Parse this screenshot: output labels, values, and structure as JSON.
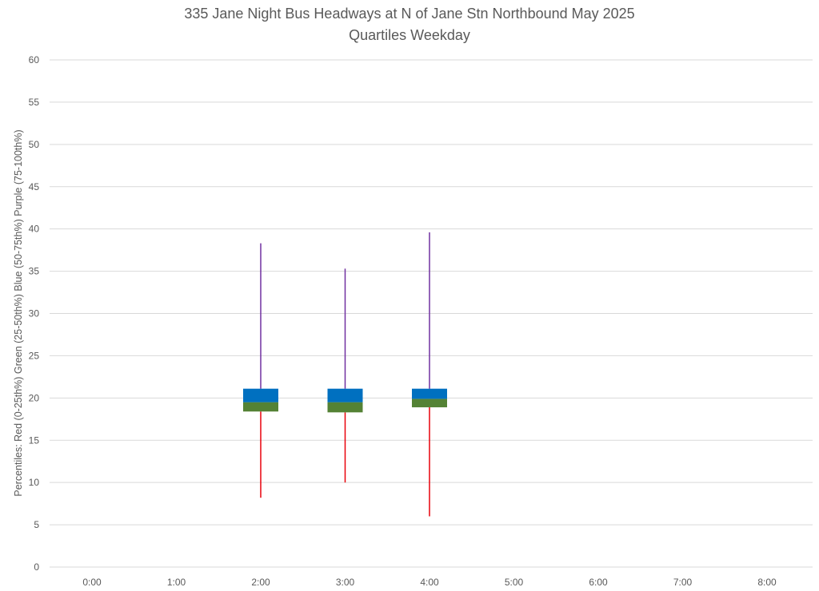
{
  "chart_data": {
    "type": "box",
    "title": "335 Jane Night Bus Headways at N of Jane Stn Northbound May 2025",
    "subtitle": "Quartiles Weekday",
    "ylabel": "Percentiles:  Red (0-25th%)  Green (25-50th%)  Blue (50-75th%)  Purple (75-100th%)",
    "xlabel": "",
    "ylim": [
      0,
      60
    ],
    "yticks": [
      "0",
      "5",
      "10",
      "15",
      "20",
      "25",
      "30",
      "35",
      "40",
      "45",
      "50",
      "55",
      "60"
    ],
    "categories": [
      "0:00",
      "1:00",
      "2:00",
      "3:00",
      "4:00",
      "5:00",
      "6:00",
      "7:00",
      "8:00"
    ],
    "grid": true,
    "boxes": [
      {
        "category": "2:00",
        "min": 8.2,
        "q1": 18.4,
        "median": 19.5,
        "q3": 21.1,
        "max": 38.3
      },
      {
        "category": "3:00",
        "min": 10.0,
        "q1": 18.3,
        "median": 19.5,
        "q3": 21.1,
        "max": 35.3
      },
      {
        "category": "4:00",
        "min": 6.0,
        "q1": 18.9,
        "median": 19.9,
        "q3": 21.1,
        "max": 39.6
      }
    ],
    "colors": {
      "p0_25": "#e8000b",
      "p25_50": "#548235",
      "p50_75": "#0070c0",
      "p75_100": "#7030a0",
      "grid": "#d9d9d9",
      "text": "#595959"
    }
  }
}
